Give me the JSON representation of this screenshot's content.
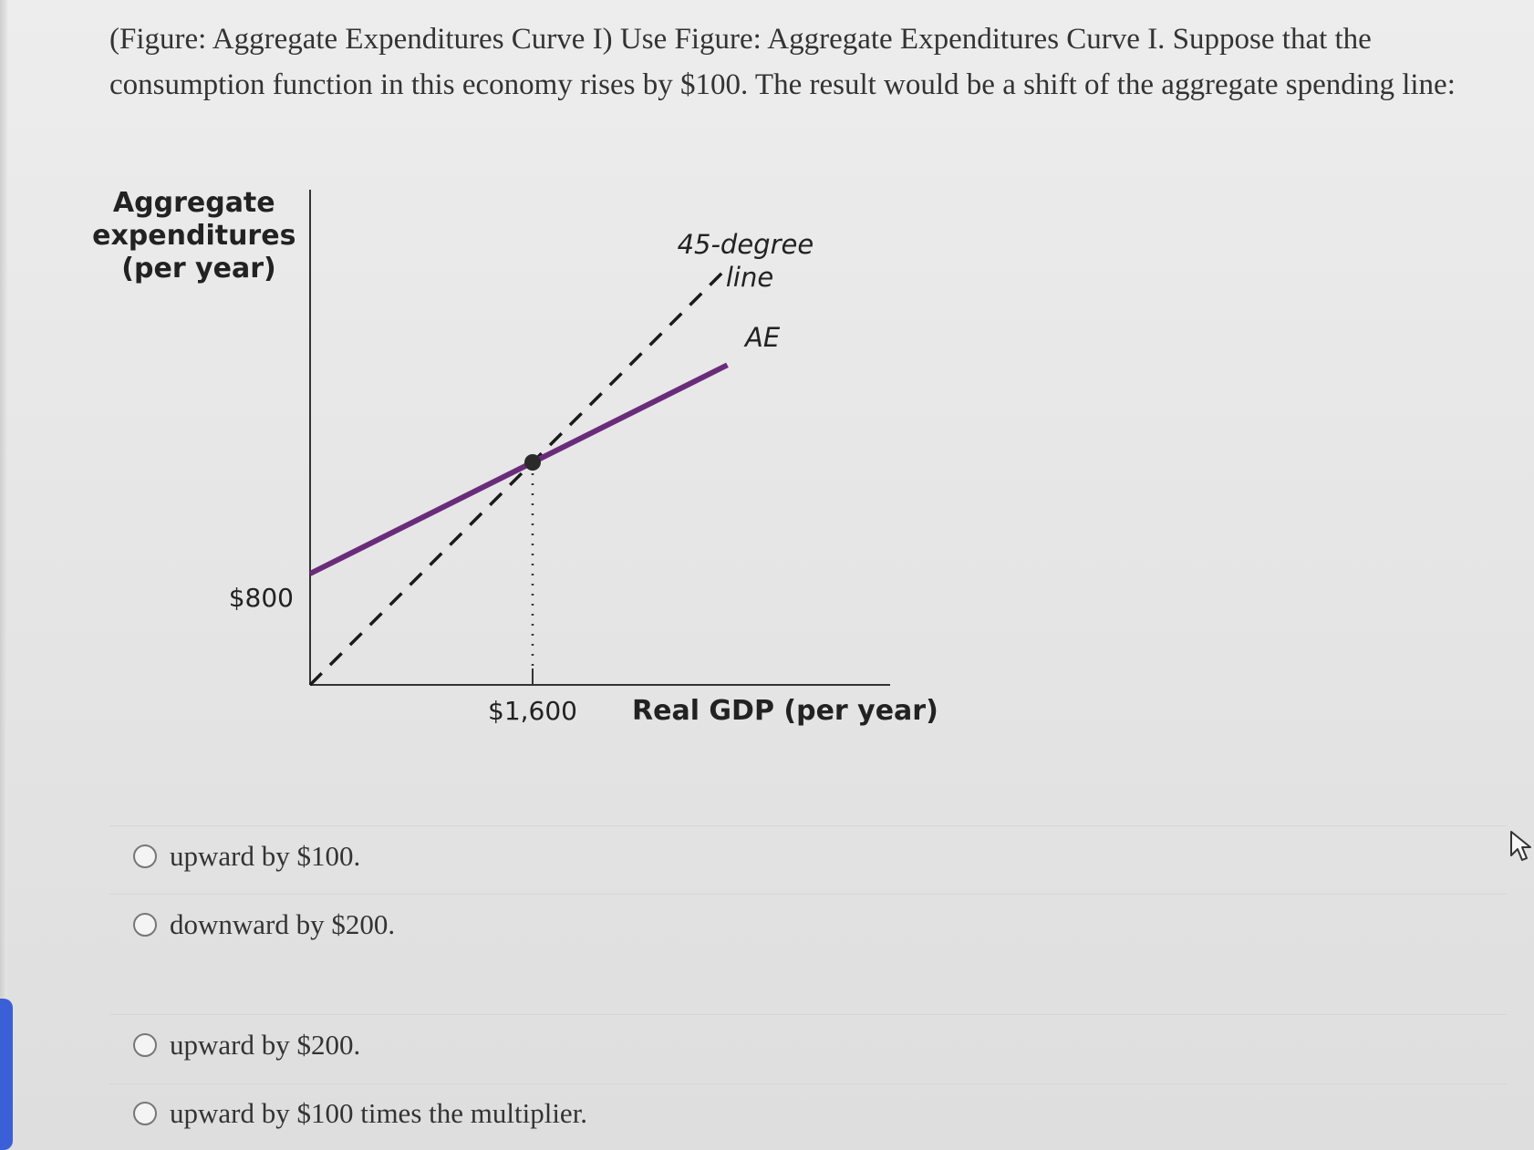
{
  "question": {
    "line1": "(Figure: Aggregate Expenditures Curve I) Use Figure: Aggregate Expenditures Curve I. Suppose that the",
    "line2": "consumption function in this economy rises by $100. The result would be a shift of the aggregate spending line:"
  },
  "chart_data": {
    "type": "line",
    "ylabel_lines": [
      "Aggregate",
      "expenditures",
      "(per year)"
    ],
    "xlabel": "Real GDP (per year)",
    "x_tick_label": "$1,600",
    "y_tick_label": "$800",
    "series": [
      {
        "name": "45-degree line",
        "label_lines": [
          "45-degree",
          "line"
        ],
        "style": "dashed",
        "color": "#1a1a1a",
        "x": [
          0,
          3000
        ],
        "y": [
          0,
          3000
        ]
      },
      {
        "name": "AE",
        "label": "AE",
        "style": "solid",
        "color": "#6a2c7a",
        "x": [
          0,
          3000
        ],
        "y": [
          800,
          2300
        ]
      }
    ],
    "equilibrium": {
      "x": 1600,
      "y": 1600
    },
    "xlim": [
      0,
      3400
    ],
    "ylim": [
      0,
      3000
    ]
  },
  "options": [
    {
      "label": "upward by $100."
    },
    {
      "label": "downward by $200."
    },
    {
      "label": "upward by $200."
    },
    {
      "label": "upward by $100 times the multiplier."
    }
  ],
  "colors": {
    "ae_line": "#6a2c7a",
    "dashed_line": "#1a1a1a",
    "text": "#333333"
  },
  "icons": {
    "cursor": "mouse-pointer-icon"
  }
}
